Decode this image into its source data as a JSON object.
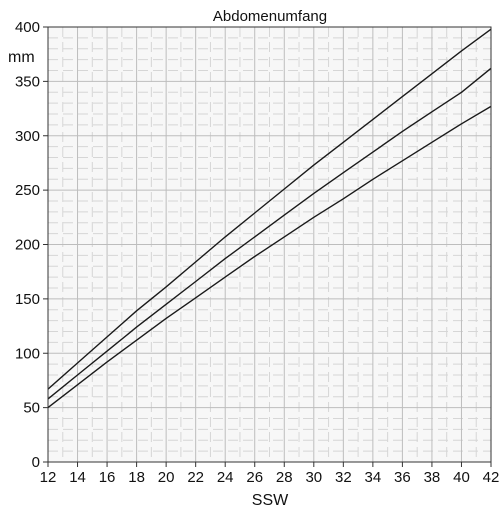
{
  "chart_data": {
    "type": "line",
    "title": "Abdomenumfang",
    "xlabel": "SSW",
    "ylabel": "mm",
    "xlim": [
      12,
      42
    ],
    "ylim": [
      0,
      400
    ],
    "x_ticks": [
      "12",
      "14",
      "16",
      "18",
      "20",
      "22",
      "24",
      "26",
      "28",
      "30",
      "32",
      "34",
      "36",
      "38",
      "40",
      "42"
    ],
    "y_ticks": [
      "0",
      "50",
      "100",
      "150",
      "200",
      "250",
      "300",
      "350",
      "400"
    ],
    "grid": true,
    "legend": "none",
    "x": [
      12,
      14,
      16,
      18,
      20,
      22,
      24,
      26,
      28,
      30,
      32,
      34,
      36,
      38,
      40,
      42
    ],
    "series": [
      {
        "values": [
          67,
          91,
          115,
          139,
          161,
          184,
          207,
          229,
          251,
          273,
          294,
          315,
          336,
          357,
          378,
          398
        ]
      },
      {
        "values": [
          58,
          80,
          102,
          124,
          145,
          166,
          187,
          207,
          227,
          247,
          266,
          285,
          304,
          322,
          340,
          362
        ]
      },
      {
        "values": [
          50,
          71,
          92,
          112,
          132,
          151,
          170,
          189,
          207,
          225,
          242,
          260,
          277,
          294,
          311,
          327
        ]
      }
    ],
    "colors": {
      "line": "#1a1a1a",
      "major_grid": "#bdbdbd",
      "minor_grid": "#d6d6d6",
      "axis": "#333333"
    }
  }
}
